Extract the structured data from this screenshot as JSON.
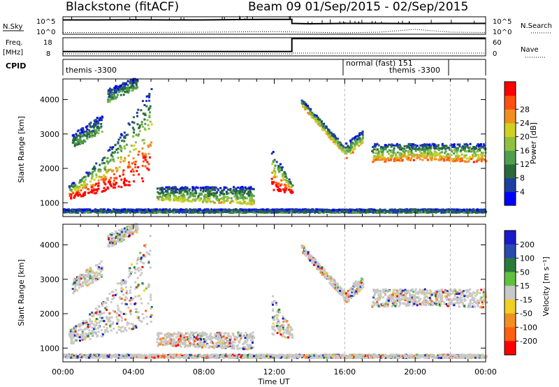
{
  "header": {
    "station": "Blackstone (fitACF)",
    "beam_dates": "Beam 09  01/Sep/2015 - 02/Sep/2015"
  },
  "panels": {
    "nsky_label": "N.Sky",
    "nsearch_label": "N.Search",
    "nsky_ticks": [
      "10^5",
      "10^0"
    ],
    "nsearch_ticks": [
      "10^5",
      "10^0"
    ],
    "freq_label_1": "Freq.",
    "freq_label_2": "[MHz]",
    "freq_ticks": [
      "18",
      "8"
    ],
    "nave_label": "Nave",
    "nave_ticks": [
      "60",
      "0"
    ],
    "cpid_label": "CPID",
    "cpid_segments": [
      "themis -3300",
      "normal (fast) 151",
      "themis -3300"
    ]
  },
  "chart_data": [
    {
      "type": "line",
      "title": "",
      "series": [
        {
          "name": "N.Sky",
          "x": [
            "00:00",
            "02:00",
            "04:00",
            "06:00",
            "08:00",
            "10:00",
            "12:00",
            "13:00",
            "14:00",
            "16:00",
            "18:00",
            "20:00",
            "22:00",
            "24:00"
          ],
          "values": [
            0.82,
            0.82,
            0.83,
            0.82,
            0.82,
            0.84,
            0.85,
            0.62,
            0.6,
            0.62,
            0.62,
            0.61,
            0.62,
            0.62
          ]
        },
        {
          "name": "N.Search",
          "x": [
            "00:00",
            "04:00",
            "08:00",
            "12:00",
            "16:00",
            "18:00",
            "20:00",
            "22:00",
            "24:00"
          ],
          "values": [
            0.1,
            0.1,
            0.12,
            0.15,
            0.08,
            0.12,
            0.28,
            0.12,
            0.1
          ]
        }
      ],
      "ylim": [
        0,
        1
      ]
    },
    {
      "type": "line",
      "series": [
        {
          "name": "Freq.",
          "x": [
            "00:00",
            "06:00",
            "12:00",
            "13:00",
            "16:00",
            "24:00"
          ],
          "values": [
            10.4,
            10.4,
            10.4,
            17.5,
            17.5,
            17.5
          ]
        }
      ],
      "ylim": [
        8,
        18
      ]
    },
    {
      "type": "heatmap",
      "xlabel": "Time UT",
      "ylabel": "Slant Range [km]",
      "xlim_hours": [
        0,
        24
      ],
      "ylim": [
        600,
        4600
      ],
      "x_ticks": [
        "00:00",
        "04:00",
        "08:00",
        "12:00",
        "16:00",
        "20:00",
        "00:00"
      ],
      "y_ticks": [
        1000,
        2000,
        3000,
        4000
      ],
      "colorbar": {
        "label": "Power [dB]",
        "ticks": [
          4,
          8,
          12,
          16,
          20,
          24,
          28
        ],
        "colors": [
          "#0000ff",
          "#1f3f9f",
          "#2a6a3a",
          "#4f9f4f",
          "#90c040",
          "#d0d020",
          "#f09020",
          "#ff5010",
          "#ff0000"
        ]
      },
      "vlines_hours": [
        16,
        22
      ]
    },
    {
      "type": "heatmap",
      "xlabel": "Time UT",
      "ylabel": "Slant Range [km]",
      "xlim_hours": [
        0,
        24
      ],
      "ylim": [
        600,
        4600
      ],
      "x_ticks": [
        "00:00",
        "04:00",
        "08:00",
        "12:00",
        "16:00",
        "20:00",
        "00:00"
      ],
      "y_ticks": [
        1000,
        2000,
        3000,
        4000
      ],
      "colorbar": {
        "label": "Velocity [m s⁻¹]",
        "ticks": [
          200,
          100,
          50,
          15,
          -15,
          -50,
          -100,
          -200
        ],
        "colors": [
          "#1a1acc",
          "#2a4ab0",
          "#2a7a3a",
          "#60c040",
          "#c8c8c8",
          "#f0d020",
          "#f09020",
          "#ff6010",
          "#ff0000"
        ]
      },
      "vlines_hours": [
        16,
        22
      ]
    }
  ],
  "x_axis": {
    "ticks": [
      "00:00",
      "04:00",
      "08:00",
      "12:00",
      "16:00",
      "20:00",
      "00:00"
    ],
    "label": "Time UT"
  }
}
